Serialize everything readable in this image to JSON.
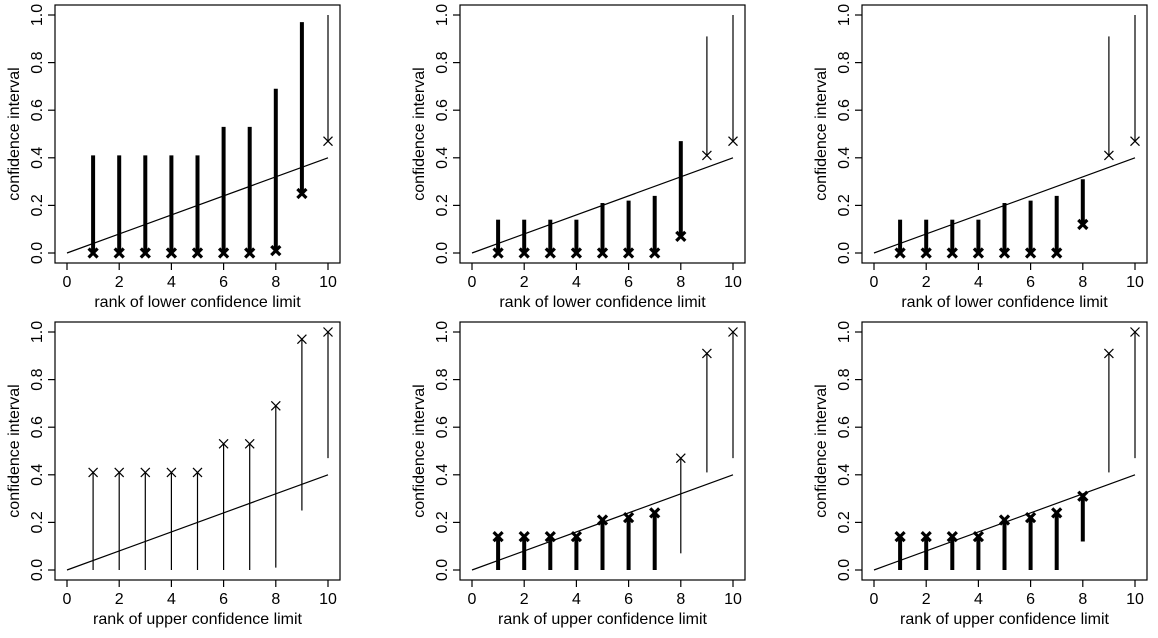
{
  "chart_data": [
    {
      "type": "interval",
      "xlabel": "rank of lower confidence limit",
      "ylabel": "confidence interval",
      "xlim": [
        0,
        10
      ],
      "ylim": [
        0,
        1
      ],
      "xticks": [
        "0",
        "2",
        "4",
        "6",
        "8",
        "10"
      ],
      "yticks": [
        "0.0",
        "0.2",
        "0.4",
        "0.6",
        "0.8",
        "1.0"
      ],
      "reference_line": {
        "x0": 0,
        "y0": 0,
        "x1": 10,
        "y1": 0.4
      },
      "marker": "lower",
      "intervals": [
        {
          "rank": 1,
          "lower": 0.0,
          "upper": 0.41,
          "bold": true
        },
        {
          "rank": 2,
          "lower": 0.0,
          "upper": 0.41,
          "bold": true
        },
        {
          "rank": 3,
          "lower": 0.0,
          "upper": 0.41,
          "bold": true
        },
        {
          "rank": 4,
          "lower": 0.0,
          "upper": 0.41,
          "bold": true
        },
        {
          "rank": 5,
          "lower": 0.0,
          "upper": 0.41,
          "bold": true
        },
        {
          "rank": 6,
          "lower": 0.0,
          "upper": 0.53,
          "bold": true
        },
        {
          "rank": 7,
          "lower": 0.0,
          "upper": 0.53,
          "bold": true
        },
        {
          "rank": 8,
          "lower": 0.01,
          "upper": 0.69,
          "bold": true
        },
        {
          "rank": 9,
          "lower": 0.25,
          "upper": 0.97,
          "bold": true
        },
        {
          "rank": 10,
          "lower": 0.47,
          "upper": 1.0,
          "bold": false
        }
      ]
    },
    {
      "type": "interval",
      "xlabel": "rank of lower confidence limit",
      "ylabel": "confidence interval",
      "xlim": [
        0,
        10
      ],
      "ylim": [
        0,
        1
      ],
      "xticks": [
        "0",
        "2",
        "4",
        "6",
        "8",
        "10"
      ],
      "yticks": [
        "0.0",
        "0.2",
        "0.4",
        "0.6",
        "0.8",
        "1.0"
      ],
      "reference_line": {
        "x0": 0,
        "y0": 0,
        "x1": 10,
        "y1": 0.4
      },
      "marker": "lower",
      "intervals": [
        {
          "rank": 1,
          "lower": 0.0,
          "upper": 0.14,
          "bold": true
        },
        {
          "rank": 2,
          "lower": 0.0,
          "upper": 0.14,
          "bold": true
        },
        {
          "rank": 3,
          "lower": 0.0,
          "upper": 0.14,
          "bold": true
        },
        {
          "rank": 4,
          "lower": 0.0,
          "upper": 0.14,
          "bold": true
        },
        {
          "rank": 5,
          "lower": 0.0,
          "upper": 0.21,
          "bold": true
        },
        {
          "rank": 6,
          "lower": 0.0,
          "upper": 0.22,
          "bold": true
        },
        {
          "rank": 7,
          "lower": 0.0,
          "upper": 0.24,
          "bold": true
        },
        {
          "rank": 8,
          "lower": 0.07,
          "upper": 0.47,
          "bold": true
        },
        {
          "rank": 9,
          "lower": 0.41,
          "upper": 0.91,
          "bold": false
        },
        {
          "rank": 10,
          "lower": 0.47,
          "upper": 1.0,
          "bold": false
        }
      ]
    },
    {
      "type": "interval",
      "xlabel": "rank of lower confidence limit",
      "ylabel": "confidence interval",
      "xlim": [
        0,
        10
      ],
      "ylim": [
        0,
        1
      ],
      "xticks": [
        "0",
        "2",
        "4",
        "6",
        "8",
        "10"
      ],
      "yticks": [
        "0.0",
        "0.2",
        "0.4",
        "0.6",
        "0.8",
        "1.0"
      ],
      "reference_line": {
        "x0": 0,
        "y0": 0,
        "x1": 10,
        "y1": 0.4
      },
      "marker": "lower",
      "intervals": [
        {
          "rank": 1,
          "lower": 0.0,
          "upper": 0.14,
          "bold": true
        },
        {
          "rank": 2,
          "lower": 0.0,
          "upper": 0.14,
          "bold": true
        },
        {
          "rank": 3,
          "lower": 0.0,
          "upper": 0.14,
          "bold": true
        },
        {
          "rank": 4,
          "lower": 0.0,
          "upper": 0.14,
          "bold": true
        },
        {
          "rank": 5,
          "lower": 0.0,
          "upper": 0.21,
          "bold": true
        },
        {
          "rank": 6,
          "lower": 0.0,
          "upper": 0.22,
          "bold": true
        },
        {
          "rank": 7,
          "lower": 0.0,
          "upper": 0.24,
          "bold": true
        },
        {
          "rank": 8,
          "lower": 0.12,
          "upper": 0.31,
          "bold": true
        },
        {
          "rank": 9,
          "lower": 0.41,
          "upper": 0.91,
          "bold": false
        },
        {
          "rank": 10,
          "lower": 0.47,
          "upper": 1.0,
          "bold": false
        }
      ]
    },
    {
      "type": "interval",
      "xlabel": "rank of upper confidence limit",
      "ylabel": "confidence interval",
      "xlim": [
        0,
        10
      ],
      "ylim": [
        0,
        1
      ],
      "xticks": [
        "0",
        "2",
        "4",
        "6",
        "8",
        "10"
      ],
      "yticks": [
        "0.0",
        "0.2",
        "0.4",
        "0.6",
        "0.8",
        "1.0"
      ],
      "reference_line": {
        "x0": 0,
        "y0": 0,
        "x1": 10,
        "y1": 0.4
      },
      "marker": "upper",
      "intervals": [
        {
          "rank": 1,
          "lower": 0.0,
          "upper": 0.41,
          "bold": false
        },
        {
          "rank": 2,
          "lower": 0.0,
          "upper": 0.41,
          "bold": false
        },
        {
          "rank": 3,
          "lower": 0.0,
          "upper": 0.41,
          "bold": false
        },
        {
          "rank": 4,
          "lower": 0.0,
          "upper": 0.41,
          "bold": false
        },
        {
          "rank": 5,
          "lower": 0.0,
          "upper": 0.41,
          "bold": false
        },
        {
          "rank": 6,
          "lower": 0.0,
          "upper": 0.53,
          "bold": false
        },
        {
          "rank": 7,
          "lower": 0.0,
          "upper": 0.53,
          "bold": false
        },
        {
          "rank": 8,
          "lower": 0.01,
          "upper": 0.69,
          "bold": false
        },
        {
          "rank": 9,
          "lower": 0.25,
          "upper": 0.97,
          "bold": false
        },
        {
          "rank": 10,
          "lower": 0.47,
          "upper": 1.0,
          "bold": false
        }
      ]
    },
    {
      "type": "interval",
      "xlabel": "rank of upper confidence limit",
      "ylabel": "confidence interval",
      "xlim": [
        0,
        10
      ],
      "ylim": [
        0,
        1
      ],
      "xticks": [
        "0",
        "2",
        "4",
        "6",
        "8",
        "10"
      ],
      "yticks": [
        "0.0",
        "0.2",
        "0.4",
        "0.6",
        "0.8",
        "1.0"
      ],
      "reference_line": {
        "x0": 0,
        "y0": 0,
        "x1": 10,
        "y1": 0.4
      },
      "marker": "upper",
      "intervals": [
        {
          "rank": 1,
          "lower": 0.0,
          "upper": 0.14,
          "bold": true
        },
        {
          "rank": 2,
          "lower": 0.0,
          "upper": 0.14,
          "bold": true
        },
        {
          "rank": 3,
          "lower": 0.0,
          "upper": 0.14,
          "bold": true
        },
        {
          "rank": 4,
          "lower": 0.0,
          "upper": 0.14,
          "bold": true
        },
        {
          "rank": 5,
          "lower": 0.0,
          "upper": 0.21,
          "bold": true
        },
        {
          "rank": 6,
          "lower": 0.0,
          "upper": 0.22,
          "bold": true
        },
        {
          "rank": 7,
          "lower": 0.0,
          "upper": 0.24,
          "bold": true
        },
        {
          "rank": 8,
          "lower": 0.07,
          "upper": 0.47,
          "bold": false
        },
        {
          "rank": 9,
          "lower": 0.41,
          "upper": 0.91,
          "bold": false
        },
        {
          "rank": 10,
          "lower": 0.47,
          "upper": 1.0,
          "bold": false
        }
      ]
    },
    {
      "type": "interval",
      "xlabel": "rank of upper confidence limit",
      "ylabel": "confidence interval",
      "xlim": [
        0,
        10
      ],
      "ylim": [
        0,
        1
      ],
      "xticks": [
        "0",
        "2",
        "4",
        "6",
        "8",
        "10"
      ],
      "yticks": [
        "0.0",
        "0.2",
        "0.4",
        "0.6",
        "0.8",
        "1.0"
      ],
      "reference_line": {
        "x0": 0,
        "y0": 0,
        "x1": 10,
        "y1": 0.4
      },
      "marker": "upper",
      "intervals": [
        {
          "rank": 1,
          "lower": 0.0,
          "upper": 0.14,
          "bold": true
        },
        {
          "rank": 2,
          "lower": 0.0,
          "upper": 0.14,
          "bold": true
        },
        {
          "rank": 3,
          "lower": 0.0,
          "upper": 0.14,
          "bold": true
        },
        {
          "rank": 4,
          "lower": 0.0,
          "upper": 0.14,
          "bold": true
        },
        {
          "rank": 5,
          "lower": 0.0,
          "upper": 0.21,
          "bold": true
        },
        {
          "rank": 6,
          "lower": 0.0,
          "upper": 0.22,
          "bold": true
        },
        {
          "rank": 7,
          "lower": 0.0,
          "upper": 0.24,
          "bold": true
        },
        {
          "rank": 8,
          "lower": 0.12,
          "upper": 0.31,
          "bold": true
        },
        {
          "rank": 9,
          "lower": 0.41,
          "upper": 0.91,
          "bold": false
        },
        {
          "rank": 10,
          "lower": 0.47,
          "upper": 1.0,
          "bold": false
        }
      ]
    }
  ]
}
